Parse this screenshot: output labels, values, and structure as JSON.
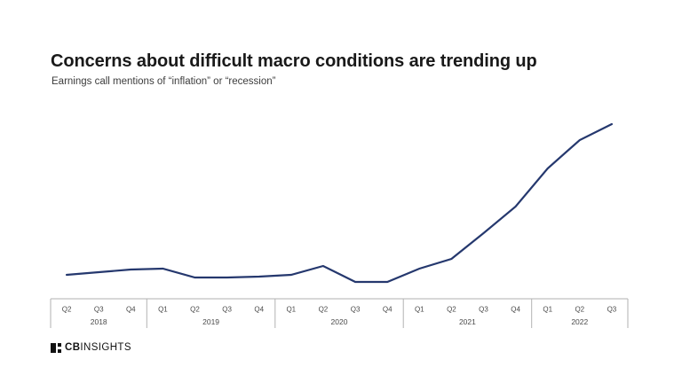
{
  "header": {
    "title": "Concerns about difficult macro conditions are trending up",
    "subtitle": "Earnings call mentions of “inflation” or “recession”"
  },
  "footer": {
    "logo_bold": "CB",
    "logo_regular": "INSIGHTS"
  },
  "colors": {
    "line": "#25386e",
    "axis": "#b2b2b2",
    "tick_label": "#4a4a4a",
    "title": "#191919",
    "subtitle": "#3c3c3c",
    "background": "#ffffff"
  },
  "chart_data": {
    "type": "line",
    "title": "Concerns about difficult macro conditions are trending up",
    "subtitle": "Earnings call mentions of “inflation” or “recession”",
    "x": [
      "Q2 2018",
      "Q3 2018",
      "Q4 2018",
      "Q1 2019",
      "Q2 2019",
      "Q3 2019",
      "Q4 2019",
      "Q1 2020",
      "Q2 2020",
      "Q3 2020",
      "Q4 2020",
      "Q1 2021",
      "Q2 2021",
      "Q3 2021",
      "Q4 2021",
      "Q1 2022",
      "Q2 2022",
      "Q3 2022"
    ],
    "series": [
      {
        "name": "Earnings call mentions of inflation or recession",
        "values": [
          27,
          30,
          33,
          34,
          24,
          24,
          25,
          27,
          37,
          19,
          19,
          34,
          45,
          74,
          104,
          147,
          179,
          197
        ]
      }
    ],
    "value_scale": "relative units (no y-axis labels or gridlines shown)",
    "xlabel": "",
    "ylabel": "",
    "ylim": [
      0,
      210
    ],
    "grid": false,
    "legend": "none",
    "axis_groups": [
      {
        "year": "2018",
        "quarters": [
          "Q2",
          "Q3",
          "Q4"
        ]
      },
      {
        "year": "2019",
        "quarters": [
          "Q1",
          "Q2",
          "Q3",
          "Q4"
        ]
      },
      {
        "year": "2020",
        "quarters": [
          "Q1",
          "Q2",
          "Q3",
          "Q4"
        ]
      },
      {
        "year": "2021",
        "quarters": [
          "Q1",
          "Q2",
          "Q3",
          "Q4"
        ]
      },
      {
        "year": "2022",
        "quarters": [
          "Q1",
          "Q2",
          "Q3"
        ]
      }
    ]
  }
}
